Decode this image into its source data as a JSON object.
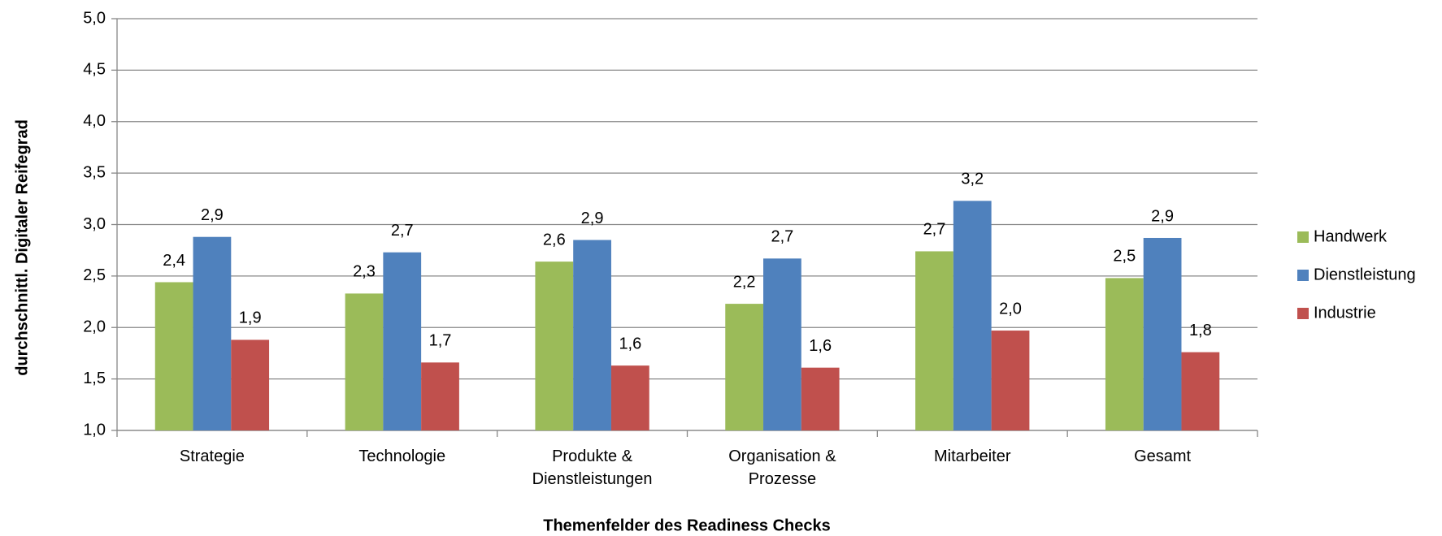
{
  "chart_data": {
    "type": "bar",
    "x_label": "Themenfelder des Readiness Checks",
    "y_label": "durchschnittl. Digitaler Reifegrad",
    "categories": [
      "Strategie",
      "Technologie",
      "Produkte & Dienstleistungen",
      "Organisation & Prozesse",
      "Mitarbeiter",
      "Gesamt"
    ],
    "series": [
      {
        "name": "Handwerk",
        "color": "#9bbb59",
        "values": [
          2.44,
          2.33,
          2.64,
          2.23,
          2.74,
          2.48
        ],
        "value_labels": [
          "2,4",
          "2,3",
          "2,6",
          "2,2",
          "2,7",
          "2,5"
        ]
      },
      {
        "name": "Dienstleistung",
        "color": "#4f81bd",
        "values": [
          2.88,
          2.73,
          2.85,
          2.67,
          3.23,
          2.87
        ],
        "value_labels": [
          "2,9",
          "2,7",
          "2,9",
          "2,7",
          "3,2",
          "2,9"
        ]
      },
      {
        "name": "Industrie",
        "color": "#c0504d",
        "values": [
          1.88,
          1.66,
          1.63,
          1.61,
          1.97,
          1.76
        ],
        "value_labels": [
          "1,9",
          "1,7",
          "1,6",
          "1,6",
          "2,0",
          "1,8"
        ]
      }
    ],
    "ylim": [
      1,
      5
    ],
    "yticks": [
      {
        "value": 1,
        "label": "1,0"
      },
      {
        "value": 1.5,
        "label": "1,5"
      },
      {
        "value": 2,
        "label": "2,0"
      },
      {
        "value": 2.5,
        "label": "2,5"
      },
      {
        "value": 3,
        "label": "3,0"
      },
      {
        "value": 3.5,
        "label": "3,5"
      },
      {
        "value": 4,
        "label": "4,0"
      },
      {
        "value": 4.5,
        "label": "4,5"
      },
      {
        "value": 5,
        "label": "5,0"
      }
    ],
    "grid": true,
    "legend": "right"
  }
}
